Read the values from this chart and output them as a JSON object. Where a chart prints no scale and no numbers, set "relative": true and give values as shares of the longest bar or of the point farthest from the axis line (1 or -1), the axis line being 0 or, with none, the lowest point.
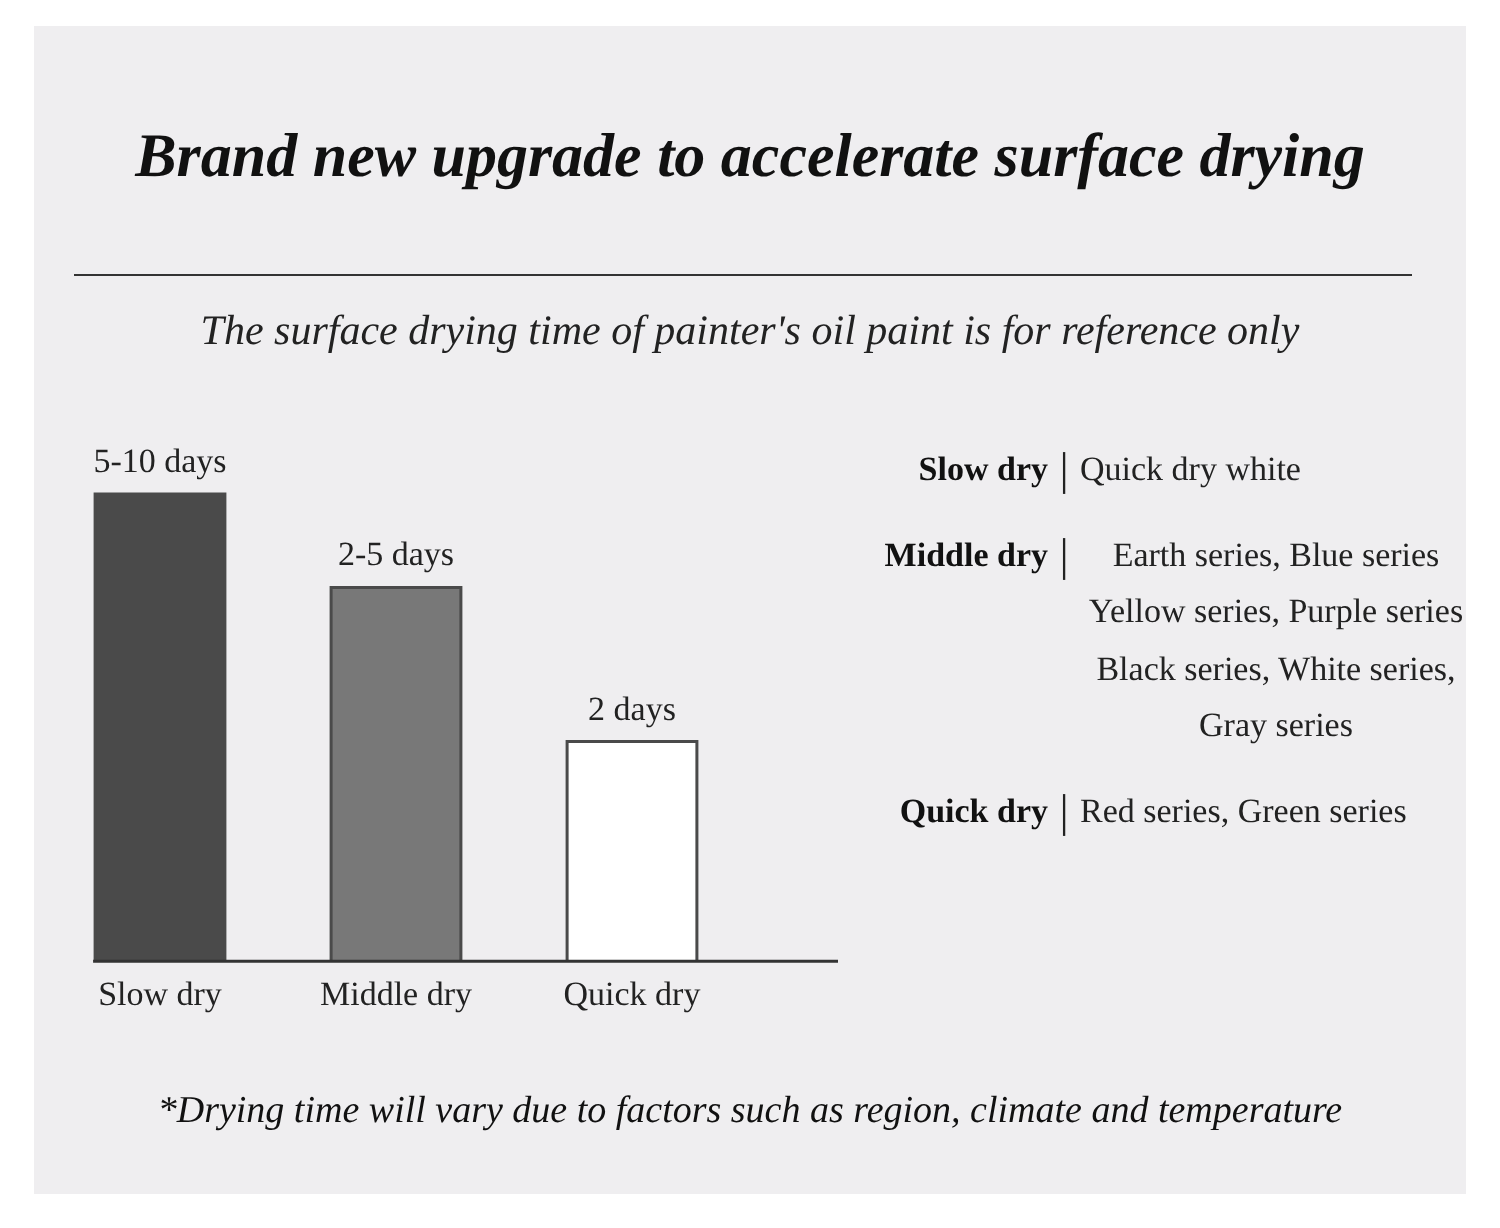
{
  "chart_data": {
    "type": "bar",
    "title": "Brand new upgrade to accelerate surface drying",
    "subtitle": "The surface drying time of painter's oil paint is for reference only",
    "categories": [
      "Slow dry",
      "Middle dry",
      "Quick dry"
    ],
    "values": [
      1,
      0.8,
      0.47
    ],
    "colors": [
      "#4a4a4a",
      "#787878",
      "#ffffff"
    ],
    "relative": true,
    "annotations": [
      {
        "text": "5-10 days",
        "x": "Slow dry",
        "y": 1
      },
      {
        "text": "2-5 days",
        "x": "Middle dry",
        "y": 0.8
      },
      {
        "text": "2 days",
        "x": "Quick dry",
        "y": 0.47
      },
      "Slow dry | Quick dry white",
      "Middle dry | Earth series, Blue series Yellow series, Purple series Black series, White series, Gray series",
      "Quick dry | Red series, Green series",
      "*Drying time will vary due to factors such as region, climate and temperature"
    ]
  }
}
